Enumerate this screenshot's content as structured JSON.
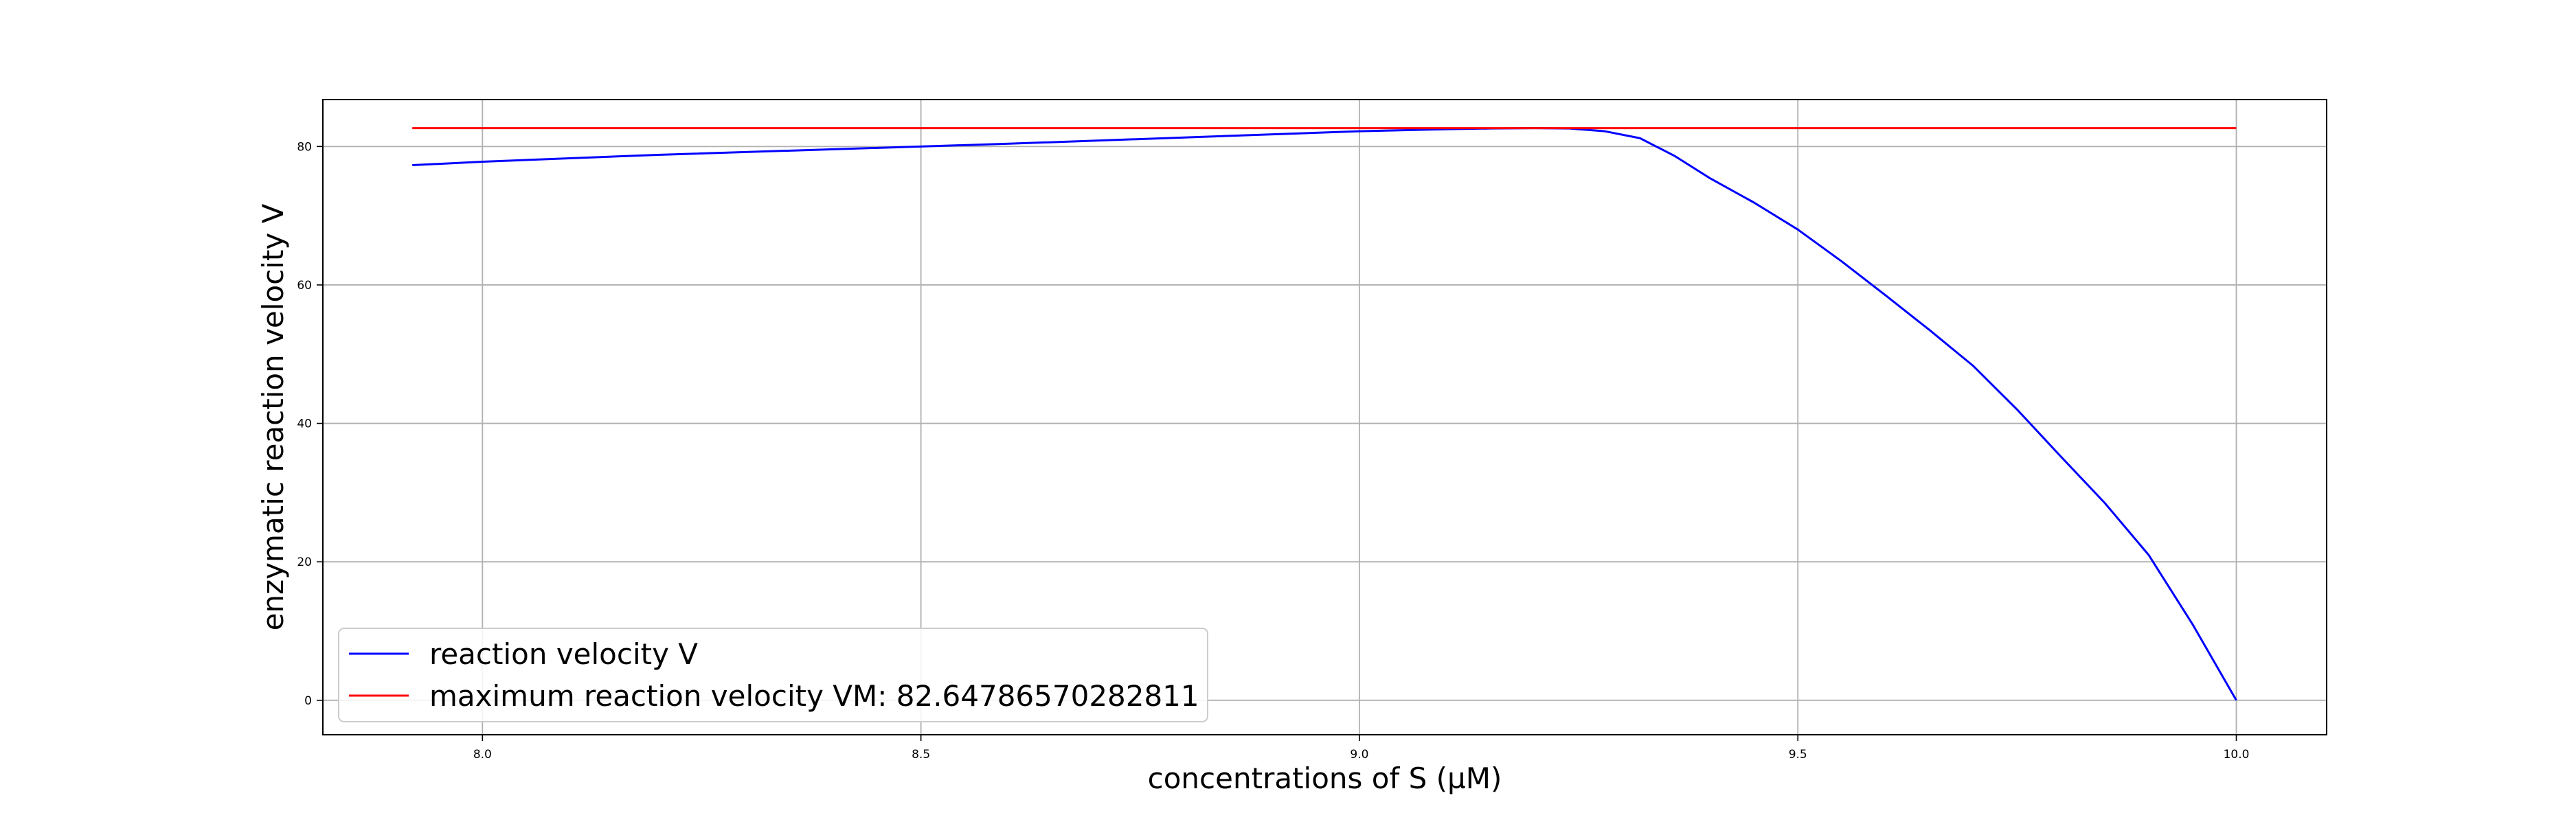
{
  "chart_data": {
    "type": "line",
    "title": "",
    "xlabel": "concentrations of S (µM)",
    "ylabel": "enzymatic reaction velocity V",
    "xlim": [
      7.818,
      10.103
    ],
    "ylim": [
      -4.98,
      86.78
    ],
    "x_ticks": [
      8.0,
      8.5,
      9.0,
      9.5,
      10.0
    ],
    "x_tick_labels": [
      "8.0",
      "8.5",
      "9.0",
      "9.5",
      "10.0"
    ],
    "y_ticks": [
      0,
      20,
      40,
      60,
      80
    ],
    "y_tick_labels": [
      "0",
      "20",
      "40",
      "60",
      "80"
    ],
    "grid": true,
    "legend_position": "lower-left",
    "series": [
      {
        "name": "reaction velocity V",
        "color": "#0000ff",
        "x": [
          7.92,
          8.0,
          8.2,
          8.4,
          8.6,
          8.8,
          9.0,
          9.1,
          9.15,
          9.2,
          9.24,
          9.28,
          9.32,
          9.36,
          9.4,
          9.45,
          9.5,
          9.55,
          9.6,
          9.65,
          9.7,
          9.75,
          9.8,
          9.85,
          9.9,
          9.95,
          10.0
        ],
        "y": [
          77.3,
          77.8,
          78.8,
          79.6,
          80.4,
          81.3,
          82.2,
          82.5,
          82.6,
          82.65,
          82.6,
          82.2,
          81.2,
          78.6,
          75.4,
          71.9,
          68.0,
          63.4,
          58.5,
          53.5,
          48.3,
          42.0,
          35.2,
          28.5,
          21.0,
          11.0,
          0.0
        ]
      },
      {
        "name": "maximum reaction velocity VM: 82.64786570282811",
        "color": "#ff0000",
        "x": [
          7.92,
          10.0
        ],
        "y": [
          82.64786570282811,
          82.64786570282811
        ]
      }
    ]
  },
  "colors": {
    "grid": "#b0b0b0",
    "frame": "#000000",
    "legend_border": "#cccccc"
  }
}
